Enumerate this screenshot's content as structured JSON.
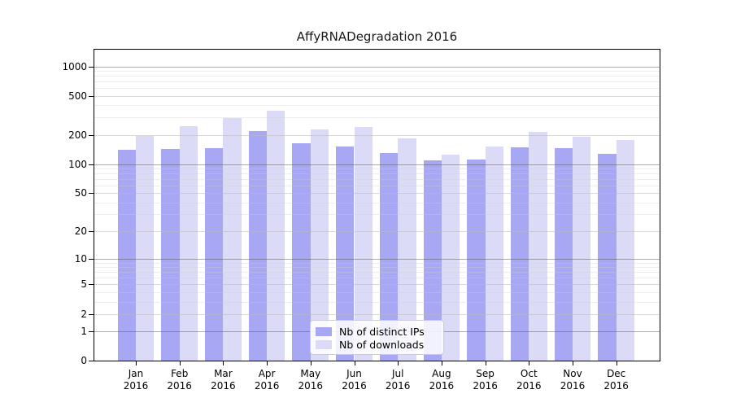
{
  "chart_data": {
    "type": "bar",
    "title": "AffyRNADegradation 2016",
    "categories": [
      "Jan",
      "Feb",
      "Mar",
      "Apr",
      "May",
      "Jun",
      "Jul",
      "Aug",
      "Sep",
      "Oct",
      "Nov",
      "Dec"
    ],
    "x_year_label": "2016",
    "series": [
      {
        "name": "Nb of distinct IPs",
        "color": "#a7a7f3",
        "values": [
          141,
          144,
          147,
          218,
          165,
          152,
          131,
          110,
          112,
          149,
          145,
          127
        ]
      },
      {
        "name": "Nb of downloads",
        "color": "#dbdbf8",
        "values": [
          195,
          247,
          295,
          350,
          225,
          238,
          185,
          125,
          152,
          216,
          192,
          176
        ]
      }
    ],
    "xlabel": "",
    "ylabel": "",
    "y_scale": "log1p",
    "y_ticks": [
      0,
      1,
      2,
      5,
      10,
      20,
      50,
      100,
      200,
      500,
      1000
    ],
    "y_minor_gridlines": [
      3,
      4,
      6,
      7,
      8,
      9,
      30,
      40,
      60,
      70,
      80,
      90,
      300,
      400,
      600,
      700,
      800,
      900
    ],
    "ylim": [
      0,
      1480
    ],
    "grid": true,
    "legend_position": "lower center",
    "frame_color": "#000000",
    "background_color": "#ffffff"
  }
}
